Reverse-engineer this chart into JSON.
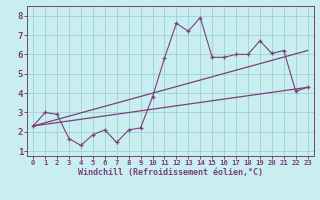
{
  "xlabel": "Windchill (Refroidissement éolien,°C)",
  "bg_color": "#c8eef0",
  "line_color": "#7b3f7b",
  "grid_color": "#a0d0d8",
  "x_data": [
    0,
    1,
    2,
    3,
    4,
    5,
    6,
    7,
    8,
    9,
    10,
    11,
    12,
    13,
    14,
    15,
    16,
    17,
    18,
    19,
    20,
    21,
    22,
    23
  ],
  "y_main": [
    2.3,
    3.0,
    2.9,
    1.65,
    1.3,
    1.85,
    2.1,
    1.45,
    2.1,
    2.2,
    3.8,
    5.8,
    7.6,
    7.2,
    7.9,
    5.85,
    5.85,
    6.0,
    6.0,
    6.7,
    6.05,
    6.2,
    4.1,
    4.3
  ],
  "y_line1_start": 2.3,
  "y_line1_end": 6.2,
  "y_line2_start": 2.3,
  "y_line2_end": 4.3,
  "xlim": [
    -0.5,
    23.5
  ],
  "ylim": [
    0.75,
    8.5
  ],
  "xticks": [
    0,
    1,
    2,
    3,
    4,
    5,
    6,
    7,
    8,
    9,
    10,
    11,
    12,
    13,
    14,
    15,
    16,
    17,
    18,
    19,
    20,
    21,
    22,
    23
  ],
  "yticks": [
    1,
    2,
    3,
    4,
    5,
    6,
    7,
    8
  ],
  "xlabel_fontsize": 6.0,
  "tick_fontsize_x": 5.2,
  "tick_fontsize_y": 6.5
}
